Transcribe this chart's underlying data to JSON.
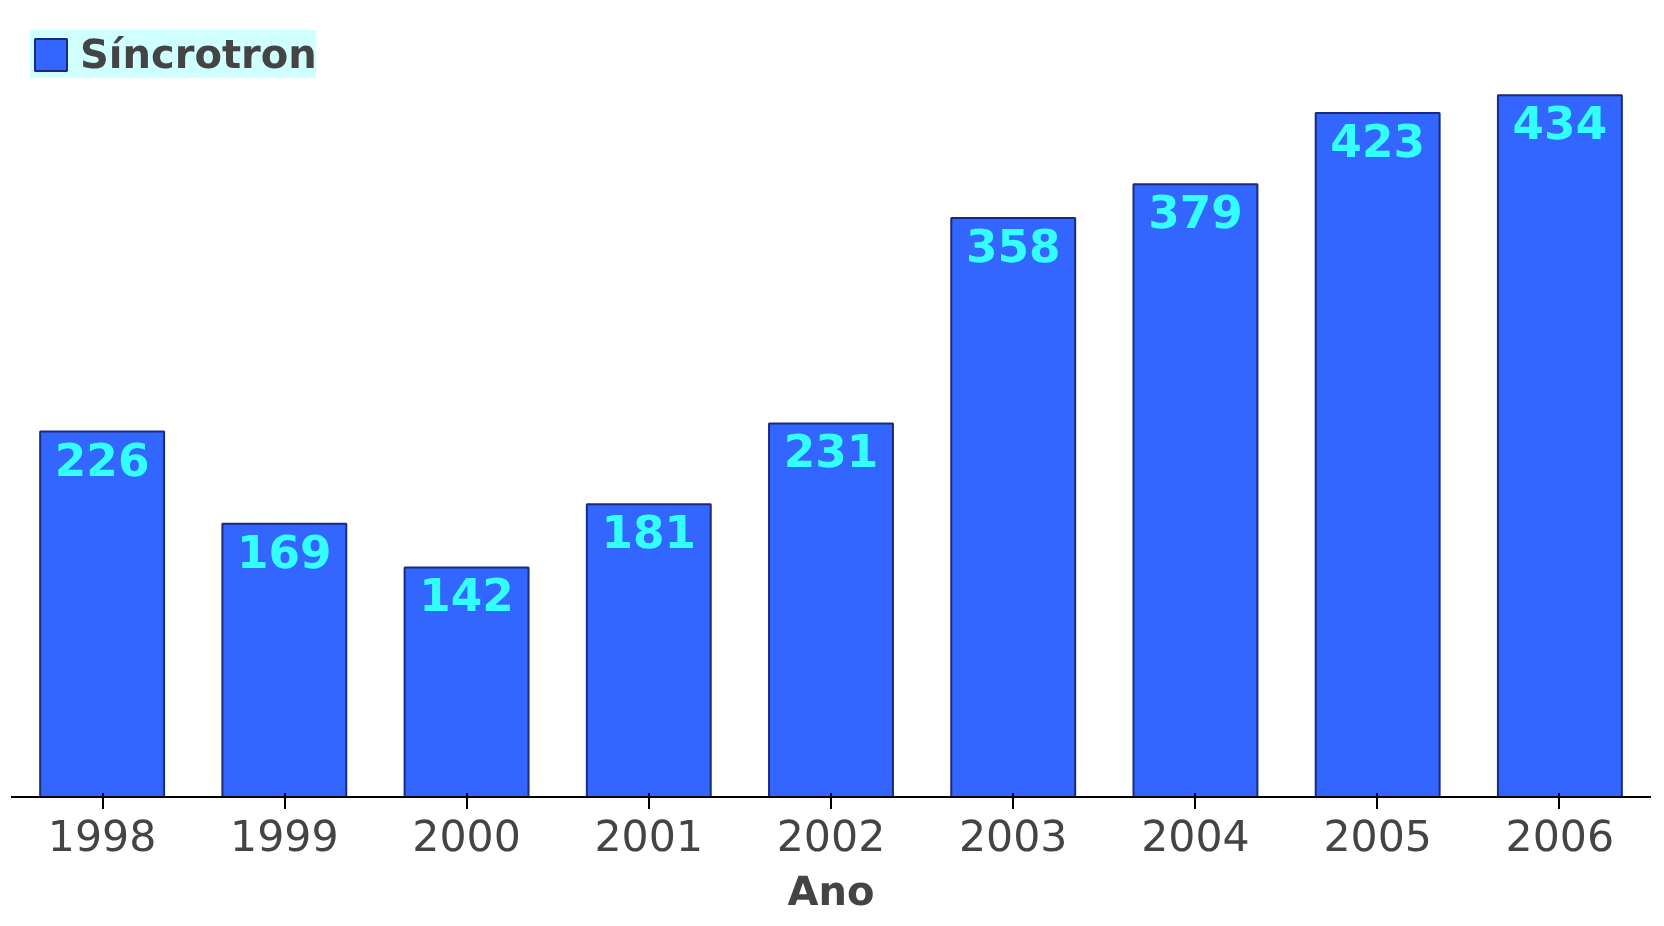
{
  "chart_data": {
    "type": "bar",
    "xlabel": "Ano",
    "categories": [
      "1998",
      "1999",
      "2000",
      "2001",
      "2002",
      "2003",
      "2004",
      "2005",
      "2006"
    ],
    "series": [
      {
        "name": "Síncrotron",
        "color": "#3366ff",
        "values": [
          226,
          169,
          142,
          181,
          231,
          358,
          379,
          423,
          434
        ]
      }
    ],
    "data_labels": true,
    "legend": "top left",
    "grid": false,
    "tick_labels": "x"
  }
}
